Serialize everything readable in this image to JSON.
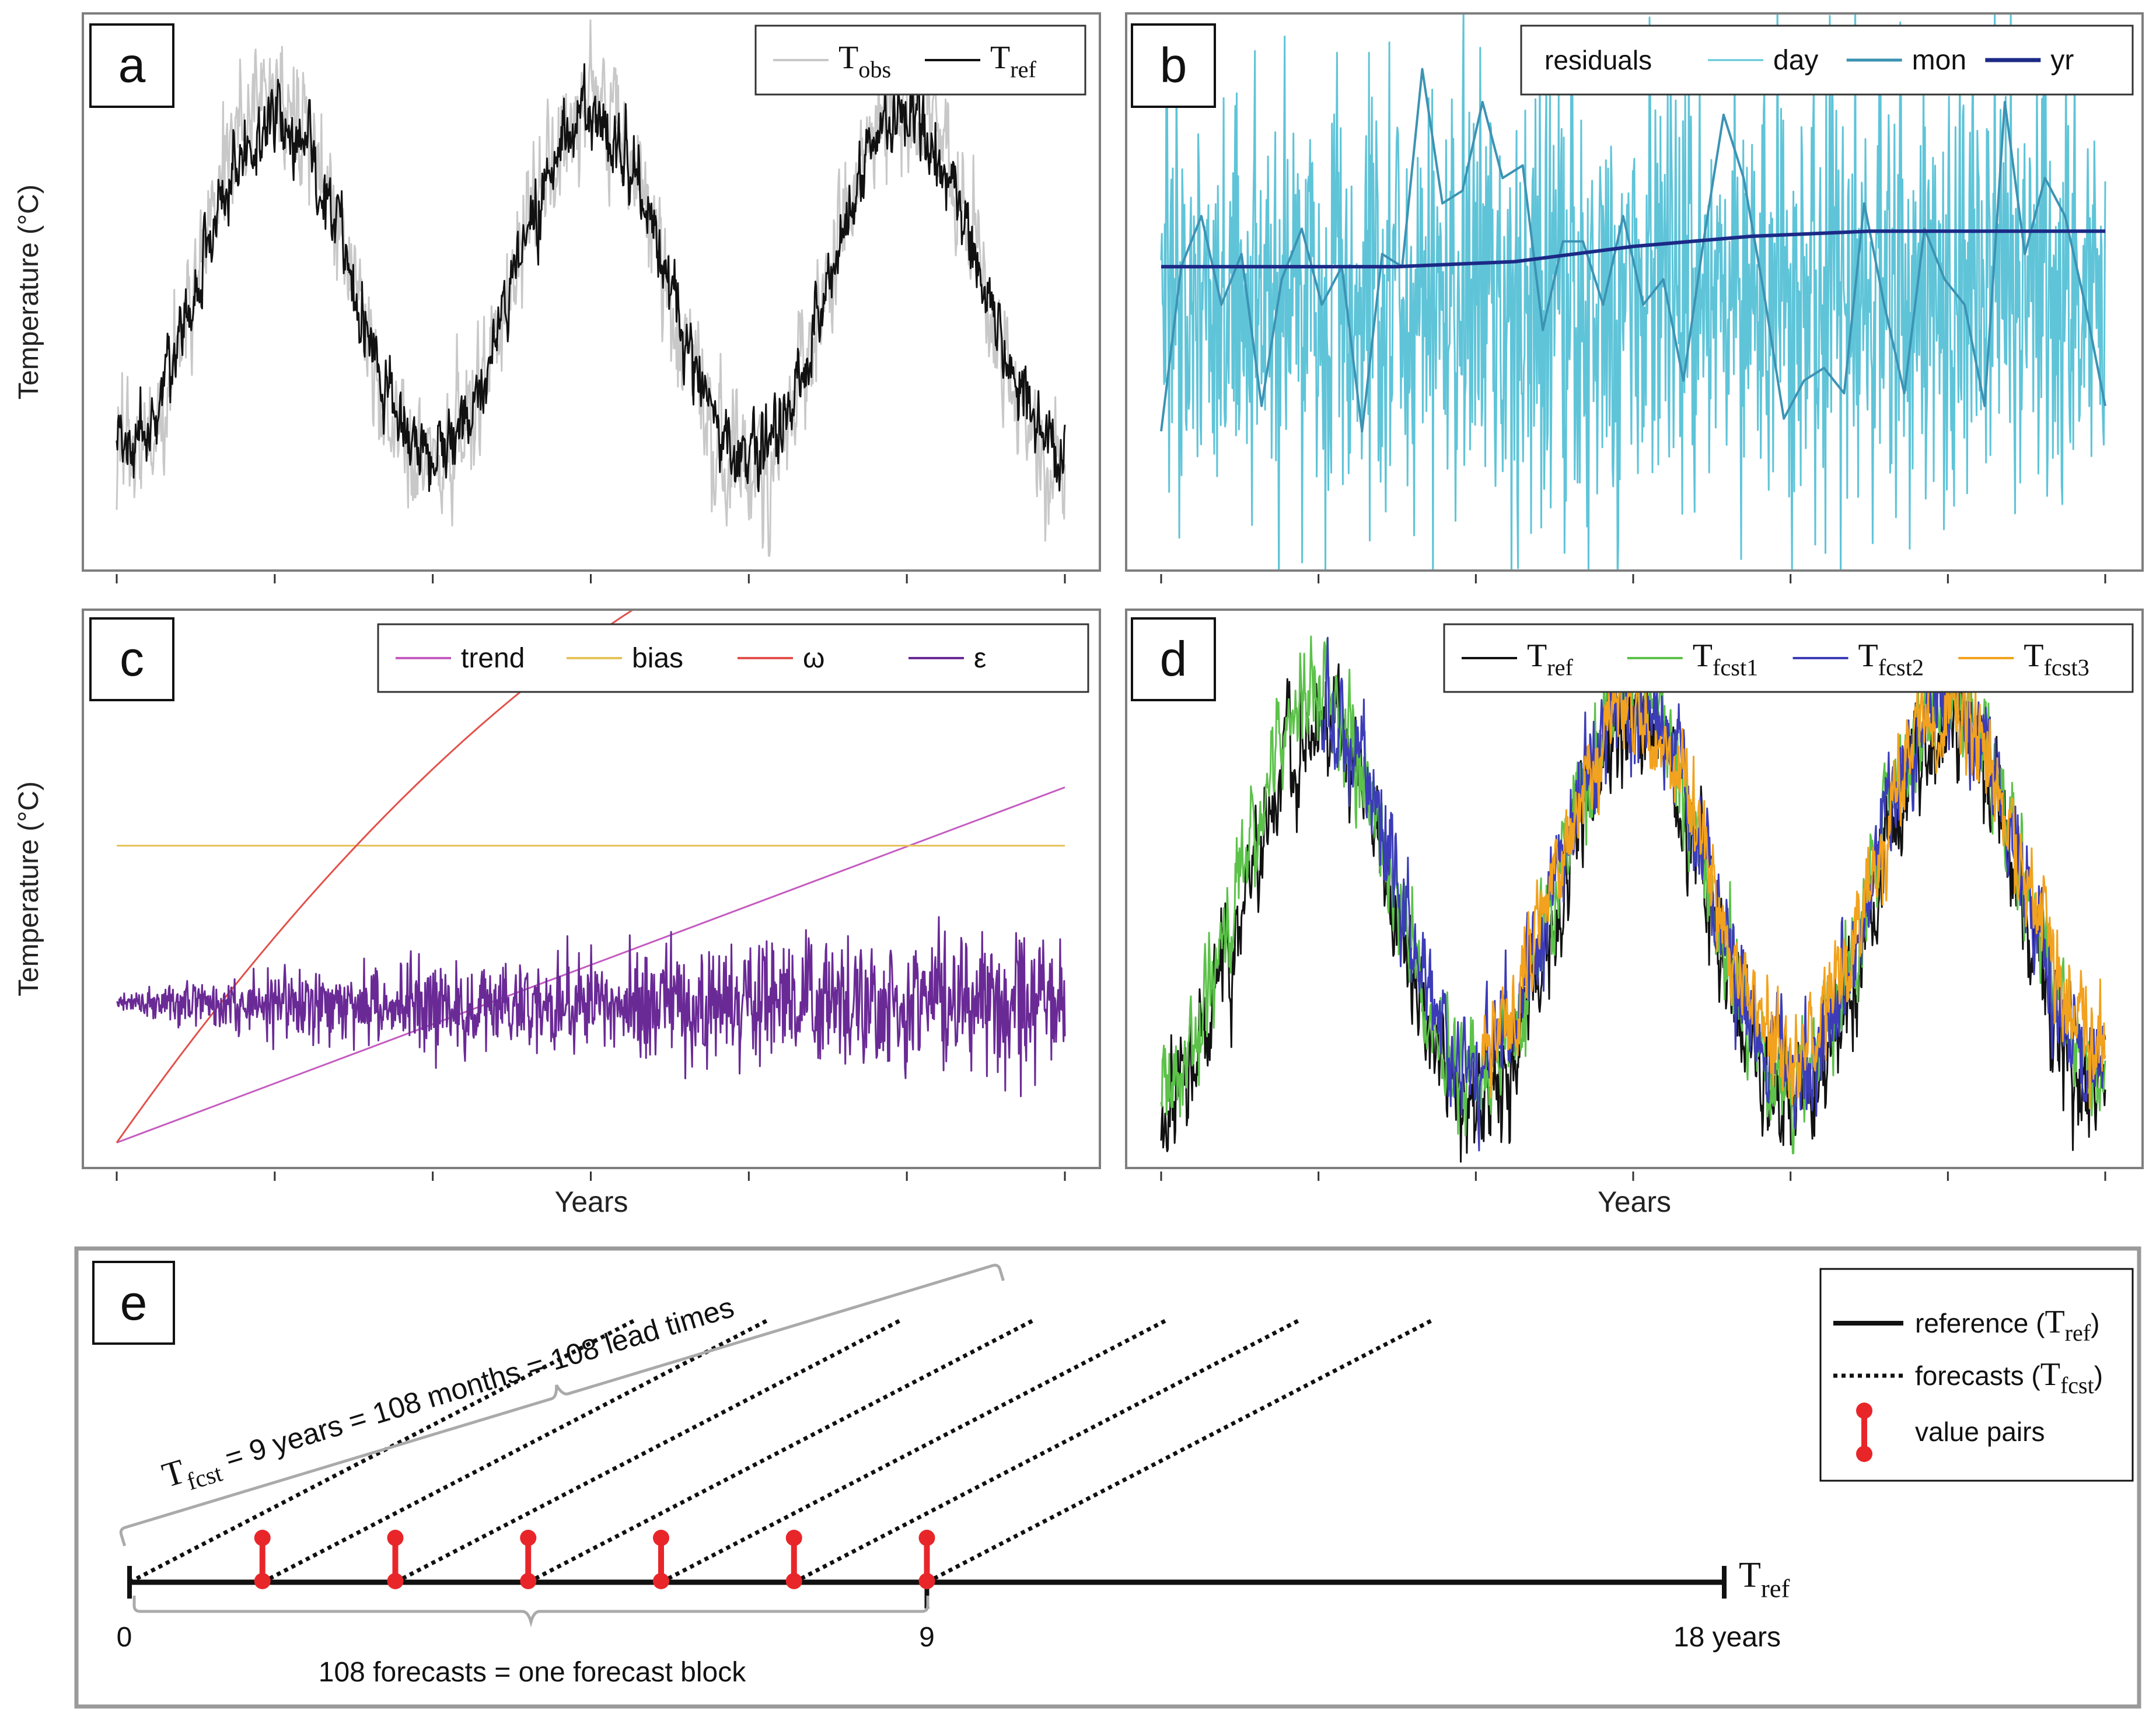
{
  "colors": {
    "frame": "#7f7f7f",
    "obs": "#c8c8c8",
    "ref": "#111111",
    "day": "#5fc4d8",
    "mon": "#3c93b4",
    "yr": "#1c2a86",
    "trend": "#c45cc0",
    "bias": "#e6c35a",
    "omega": "#e2524b",
    "eps": "#6a2a96",
    "fcst1": "#5cc24a",
    "fcst2": "#3c3cb8",
    "fcst3": "#f2a21e",
    "pair": "#e8262a"
  },
  "chart_data": [
    {
      "type": "line",
      "panel": "a",
      "panel_label": "a",
      "ylabel": "Temperature (°C)",
      "xlabel": "",
      "x_ticks": 7,
      "legend": {
        "position": "top-right",
        "entries": [
          {
            "base": "T",
            "sub": "obs"
          },
          {
            "base": "T",
            "sub": "ref"
          }
        ]
      },
      "series": [
        {
          "name": "T_obs",
          "kind": "seasonal-noisy",
          "cycles": 3,
          "phase": -0.25,
          "amp": 0.75,
          "mean": 0.0,
          "noise": 0.16,
          "count": 1400,
          "seed": 11
        },
        {
          "name": "T_ref",
          "kind": "seasonal-noisy",
          "cycles": 3,
          "phase": -0.25,
          "amp": 0.68,
          "mean": 0.0,
          "noise": 0.09,
          "count": 1400,
          "seed": 12
        }
      ],
      "ylim": [
        -1.15,
        1.1
      ]
    },
    {
      "type": "line",
      "panel": "b",
      "panel_label": "b",
      "ylabel": "",
      "xlabel": "",
      "x_ticks": 7,
      "legend": {
        "position": "top-right",
        "title": "residuals",
        "entries": [
          {
            "base": "day"
          },
          {
            "base": "mon"
          },
          {
            "base": "yr"
          }
        ]
      },
      "series": [
        {
          "name": "day",
          "kind": "noise",
          "amp": 0.62,
          "count": 1300,
          "seed": 21
        },
        {
          "name": "mon",
          "kind": "points",
          "values": [
            -0.55,
            0.1,
            0.3,
            -0.05,
            0.15,
            -0.45,
            0.05,
            0.25,
            -0.05,
            0.1,
            -0.55,
            0.15,
            0.1,
            0.88,
            0.35,
            0.4,
            0.75,
            0.45,
            0.5,
            -0.15,
            0.2,
            0.2,
            -0.05,
            0.3,
            -0.05,
            0.05,
            -0.35,
            0.2,
            0.7,
            0.45,
            0.0,
            -0.5,
            -0.35,
            -0.3,
            -0.4,
            0.35,
            -0.05,
            -0.4,
            0.25,
            0.05,
            -0.05,
            -0.45,
            0.75,
            0.15,
            0.45,
            0.3,
            -0.05,
            -0.45
          ]
        },
        {
          "name": "yr",
          "kind": "points",
          "values": [
            0.1,
            0.1,
            0.1,
            0.12,
            0.18,
            0.22,
            0.24,
            0.24,
            0.24
          ]
        }
      ],
      "ylim": [
        -1.1,
        1.1
      ]
    },
    {
      "type": "line",
      "panel": "c",
      "panel_label": "c",
      "ylabel": "Temperature (°C)",
      "xlabel": "Years",
      "x_ticks": 7,
      "legend": {
        "position": "top-right",
        "entries": [
          {
            "base": "trend"
          },
          {
            "base": "bias"
          },
          {
            "base": "ω"
          },
          {
            "base": "ε"
          }
        ]
      },
      "series": [
        {
          "name": "trend",
          "kind": "linear",
          "from": -0.55,
          "to": 0.85
        },
        {
          "name": "bias",
          "kind": "linear",
          "from": 0.62,
          "to": 0.62
        },
        {
          "name": "omega",
          "kind": "concave",
          "from": -0.55,
          "to": 2.1
        },
        {
          "name": "epsilon",
          "kind": "growing-noise",
          "mean": 0.0,
          "amp_from": 0.01,
          "amp_to": 0.2,
          "count": 1400,
          "seed": 31
        }
      ],
      "ylim": [
        -0.65,
        1.55
      ]
    },
    {
      "type": "line",
      "panel": "d",
      "panel_label": "d",
      "ylabel": "",
      "xlabel": "Years",
      "x_ticks": 7,
      "legend": {
        "position": "top-right",
        "entries": [
          {
            "base": "T",
            "sub": "ref"
          },
          {
            "base": "T",
            "sub": "fcst1"
          },
          {
            "base": "T",
            "sub": "fcst2"
          },
          {
            "base": "T",
            "sub": "fcst3"
          }
        ]
      },
      "series": [
        {
          "name": "T_ref",
          "kind": "seasonal-noisy",
          "cycles": 3,
          "phase": -0.25,
          "amp": 0.78,
          "mean": -0.05,
          "noise": 0.14,
          "count": 1400,
          "seed": 41,
          "start": 0.0
        },
        {
          "name": "T_fcst1",
          "kind": "seasonal-noisy",
          "cycles": 3,
          "phase": -0.25,
          "amp": 0.78,
          "mean": 0.05,
          "noise": 0.13,
          "count": 1400,
          "seed": 42,
          "start": 0.0
        },
        {
          "name": "T_fcst2",
          "kind": "seasonal-noisy",
          "cycles": 3,
          "phase": -0.25,
          "amp": 0.75,
          "mean": 0.05,
          "noise": 0.13,
          "count": 1300,
          "seed": 43,
          "start": 0.17
        },
        {
          "name": "T_fcst3",
          "kind": "seasonal-noisy",
          "cycles": 3,
          "phase": -0.25,
          "amp": 0.72,
          "mean": 0.08,
          "noise": 0.12,
          "count": 1000,
          "seed": 44,
          "start": 0.34
        }
      ],
      "ylim": [
        -1.1,
        1.2
      ]
    },
    {
      "type": "diagram",
      "panel": "e",
      "panel_label": "e",
      "axis": {
        "start_label": "0",
        "mid_label": "9",
        "end_label": "18 years",
        "end_series": {
          "base": "T",
          "sub": "ref"
        },
        "max_years": 18
      },
      "forecast_starts_years": [
        0,
        1.5,
        3,
        4.5,
        6,
        7.5,
        9
      ],
      "forecast_length_years": 9,
      "value_pair_years": [
        1.5,
        3,
        4.5,
        6,
        7.5,
        9
      ],
      "brace_top_label": {
        "base": "T",
        "sub": "fcst",
        "rest": " = 9 years = 108 months = 108 lead times"
      },
      "brace_bottom_label": "108 forecasts = one forecast block",
      "legend": {
        "reference": {
          "text": "reference (",
          "base": "T",
          "sub": "ref",
          "close": ")"
        },
        "forecasts": {
          "text": "forecasts (",
          "base": "T",
          "sub": "fcst",
          "close": ")"
        },
        "pairs": {
          "text": "value pairs"
        }
      }
    }
  ]
}
